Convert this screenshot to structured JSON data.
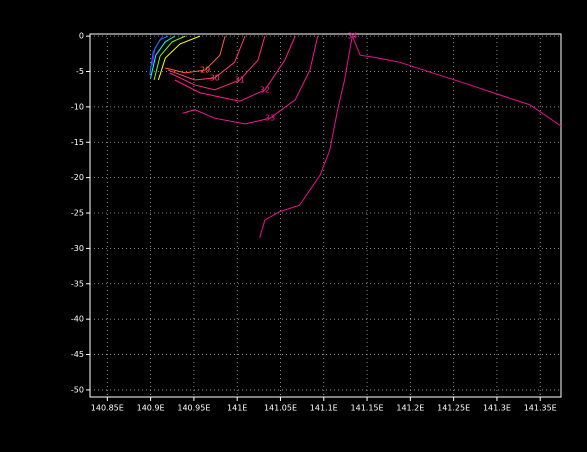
{
  "chart_data": {
    "type": "contour",
    "xlim": [
      140.83,
      141.374
    ],
    "ylim": [
      -51,
      0.3
    ],
    "xticks": [
      {
        "value": 140.85,
        "label": "140.85E"
      },
      {
        "value": 140.9,
        "label": "140.9E"
      },
      {
        "value": 140.95,
        "label": "140.95E"
      },
      {
        "value": 141.0,
        "label": "141E"
      },
      {
        "value": 141.05,
        "label": "141.05E"
      },
      {
        "value": 141.1,
        "label": "141.1E"
      },
      {
        "value": 141.15,
        "label": "141.15E"
      },
      {
        "value": 141.2,
        "label": "141.2E"
      },
      {
        "value": 141.25,
        "label": "141.25E"
      },
      {
        "value": 141.3,
        "label": "141.3E"
      },
      {
        "value": 141.35,
        "label": "141.35E"
      }
    ],
    "yticks": [
      0,
      -5,
      -10,
      -15,
      -20,
      -25,
      -30,
      -35,
      -40,
      -45,
      -50
    ],
    "grid": true,
    "contours": [
      {
        "color": "#a000ff",
        "x": [
          140.902,
          140.905,
          140.914
        ],
        "y": [
          -4.1,
          -1.7,
          0.0
        ]
      },
      {
        "color": "#0080ff",
        "x": [
          140.899,
          140.903,
          140.911,
          140.92
        ],
        "y": [
          -5.5,
          -2.2,
          -0.5,
          0.0
        ]
      },
      {
        "color": "#00ffff",
        "x": [
          140.9,
          140.906,
          140.917,
          140.928
        ],
        "y": [
          -5.9,
          -2.7,
          -0.8,
          0.0
        ]
      },
      {
        "color": "#80ff00",
        "x": [
          140.904,
          140.911,
          140.925,
          140.94
        ],
        "y": [
          -6.2,
          -2.8,
          -0.8,
          0.0
        ]
      },
      {
        "color": "#ffff00",
        "x": [
          140.909,
          140.917,
          140.934,
          140.957
        ],
        "y": [
          -6.2,
          -3.1,
          -1.1,
          0.0
        ]
      },
      {
        "level": 29,
        "color": "#ff6040",
        "x": [
          140.917,
          140.94,
          140.963,
          140.98,
          140.986
        ],
        "y": [
          -4.5,
          -5.2,
          -4.8,
          -2.7,
          0.0
        ]
      },
      {
        "level": 30,
        "color": "#ff4070",
        "x": [
          140.92,
          140.951,
          140.974,
          140.997,
          141.009
        ],
        "y": [
          -4.8,
          -6.2,
          -5.9,
          -3.7,
          0.0
        ]
      },
      {
        "level": 31,
        "color": "#ff2a80",
        "x": [
          140.922,
          140.951,
          140.974,
          141.003,
          141.024,
          141.032
        ],
        "y": [
          -5.2,
          -6.9,
          -7.6,
          -6.2,
          -3.4,
          0.0
        ]
      },
      {
        "level": 32,
        "color": "#ff1a8c",
        "x": [
          140.928,
          140.957,
          141.003,
          141.032,
          141.055,
          141.067
        ],
        "y": [
          -6.2,
          -8.0,
          -9.2,
          -7.6,
          -3.4,
          0.0
        ]
      },
      {
        "level": 33,
        "color": "#f01890",
        "x": [
          140.937,
          140.951,
          140.974,
          141.009,
          141.038,
          141.067,
          141.084,
          141.093
        ],
        "y": [
          -10.9,
          -10.4,
          -11.6,
          -12.4,
          -11.6,
          -9.0,
          -4.8,
          0.0
        ]
      },
      {
        "level": 34,
        "color": "#e8108c",
        "x": [
          141.026,
          141.032,
          141.049,
          141.072,
          141.096,
          141.107,
          141.116,
          141.124,
          141.13,
          141.133,
          141.142,
          141.159,
          141.188,
          141.223,
          141.269,
          141.303,
          141.338,
          141.374
        ],
        "y": [
          -28.5,
          -26.0,
          -24.8,
          -23.9,
          -19.6,
          -16.1,
          -10.4,
          -6.2,
          -2.0,
          0.0,
          -2.7,
          -3.0,
          -3.7,
          -5.1,
          -6.9,
          -8.3,
          -9.7,
          -12.7
        ]
      }
    ]
  }
}
